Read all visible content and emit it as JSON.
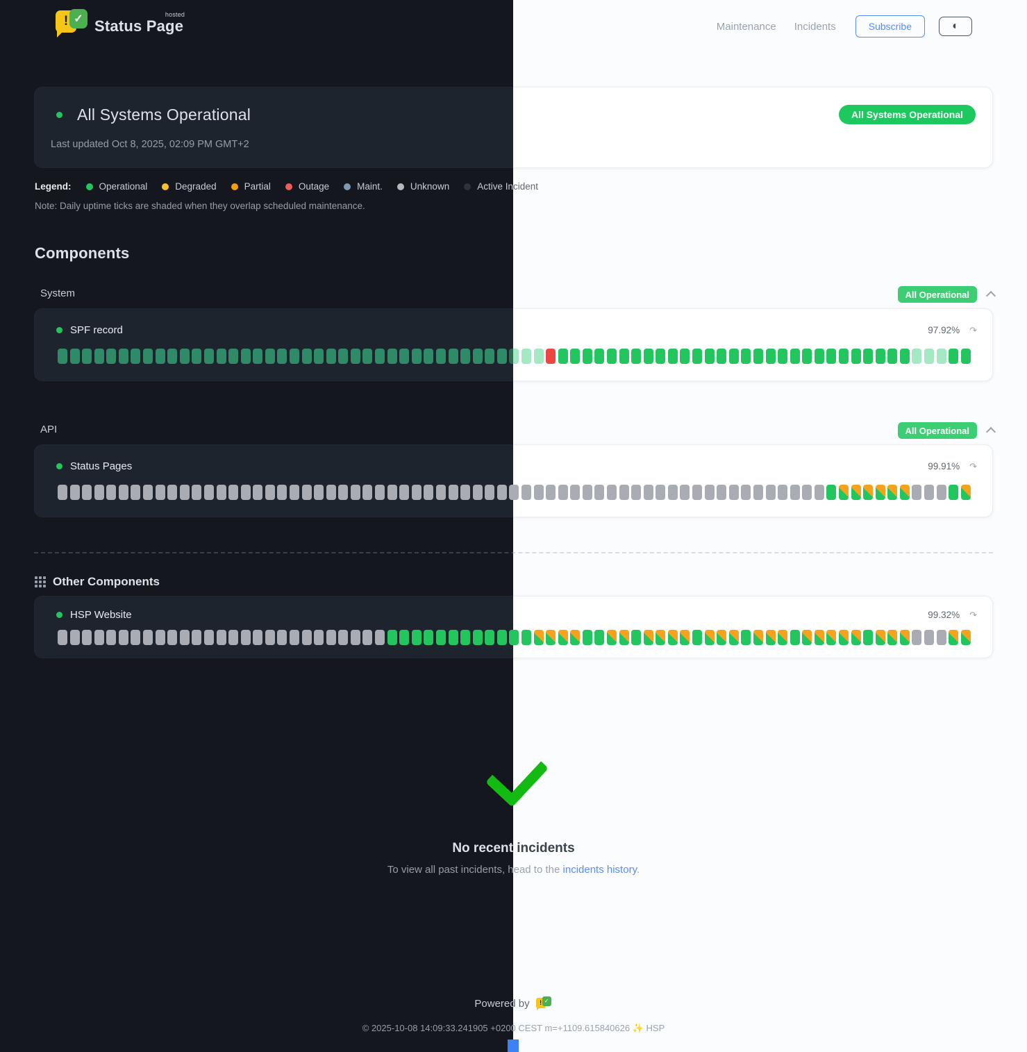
{
  "brand": {
    "name": "Status Page",
    "hosted": "hosted",
    "bubble_char": "!",
    "check_char": "✓"
  },
  "nav": {
    "maintenance": "Maintenance",
    "incidents": "Incidents",
    "subscribe": "Subscribe",
    "theme_toggle_icon": "◐"
  },
  "hero": {
    "status": "All Systems Operational",
    "last_updated": "Last updated Oct 8, 2025, 02:09 PM GMT+2",
    "badge": "All Systems Operational",
    "badge_color": "#1dc85e"
  },
  "legend": {
    "label": "Legend:",
    "items": [
      {
        "label": "Operational",
        "color": "#22c55e"
      },
      {
        "label": "Degraded",
        "color": "#fbc02d"
      },
      {
        "label": "Partial",
        "color": "#f59e0b"
      },
      {
        "label": "Outage",
        "color": "#f05b5b"
      },
      {
        "label": "Maint.",
        "color": "#7f9ab0"
      },
      {
        "label": "Unknown",
        "color": "#b6b9bd"
      },
      {
        "label": "Active Incident",
        "color": "#2e333a"
      }
    ],
    "note": "Note: Daily uptime ticks are shaded when they overlap scheduled maintenance."
  },
  "components": {
    "title": "Components",
    "tick_char_meaning": {
      "o": "operational",
      "g": "operational-bright",
      "f": "maintenance-shaded",
      "r": "outage",
      "u": "unknown",
      "m": "operational-degraded-mix"
    },
    "groups": [
      {
        "name": "System",
        "badge": "All Operational",
        "rows": [
          {
            "name": "SPF record",
            "uptime": "97.92%",
            "pattern": "ooooooooooooooooooooooooooooooooooooofffrooooooooooooooooooooooooooooofffoo"
          }
        ]
      },
      {
        "name": "API",
        "badge": "All Operational",
        "rows": [
          {
            "name": "Status Pages",
            "uptime": "99.91%",
            "pattern": "uuuuuuuuuuuuuuuuuuuuuuuuuuuuuuuuuuuuuuuuuuuuuuuuuuuuuuuuuuuuuuugmmmmmmuuugm"
          }
        ]
      }
    ],
    "other": {
      "title": "Other Components",
      "rows": [
        {
          "name": "HSP Website",
          "uptime": "99.32%",
          "pattern": "uuuuuuuuuuuuuuuuuuuuuuuuuuuggggggggggggmmmmggmmgmmmmgmmmgmmmgmmmmmgmmmuuumm"
        }
      ]
    },
    "refresh_icon": "↷"
  },
  "incidents_section": {
    "title": "No recent incidents",
    "subtitle_prefix": "To view all past incidents, head to the ",
    "link_text": "incidents history",
    "subtitle_suffix": "."
  },
  "footer": {
    "powered_by": "Powered by",
    "copyright": "© 2025-10-08 14:09:33.241905 +0200 CEST m=+1109.615840626 ✨ HSP"
  },
  "colors": {
    "accent_green": "#22c55e",
    "outage_red": "#ef4444",
    "degraded_orange": "#f6a21c",
    "link_blue": "#5a8df0",
    "group_badge_green": "#3bce73"
  }
}
